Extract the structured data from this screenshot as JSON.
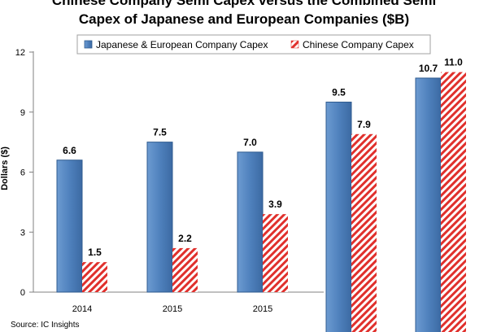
{
  "chart_data": {
    "type": "bar",
    "title_lines": [
      "Chinese Company Semi Capex versus the Combined Semi",
      "Capex of Japanese and European Companies ($B)"
    ],
    "ylabel": "Dollars ($)",
    "ylim": [
      0,
      12
    ],
    "yticks": [
      0,
      3,
      6,
      9,
      12
    ],
    "categories": [
      "2014",
      "2015",
      "2015",
      "",
      ""
    ],
    "legend_position": "top-center",
    "grid": false,
    "series": [
      {
        "name": "Japanese & European Company Capex",
        "color": "#4f81bd",
        "values": [
          6.6,
          7.5,
          7.0,
          9.5,
          10.7
        ],
        "labels": [
          "6.6",
          "7.5",
          "7.0",
          "9.5",
          "10.7"
        ]
      },
      {
        "name": "Chinese Company Capex",
        "color": "#e0302c",
        "values": [
          1.5,
          2.2,
          3.9,
          7.9,
          11.0
        ],
        "labels": [
          "1.5",
          "2.2",
          "3.9",
          "7.9",
          "11.0"
        ]
      }
    ]
  },
  "source": "Source: IC Insights"
}
